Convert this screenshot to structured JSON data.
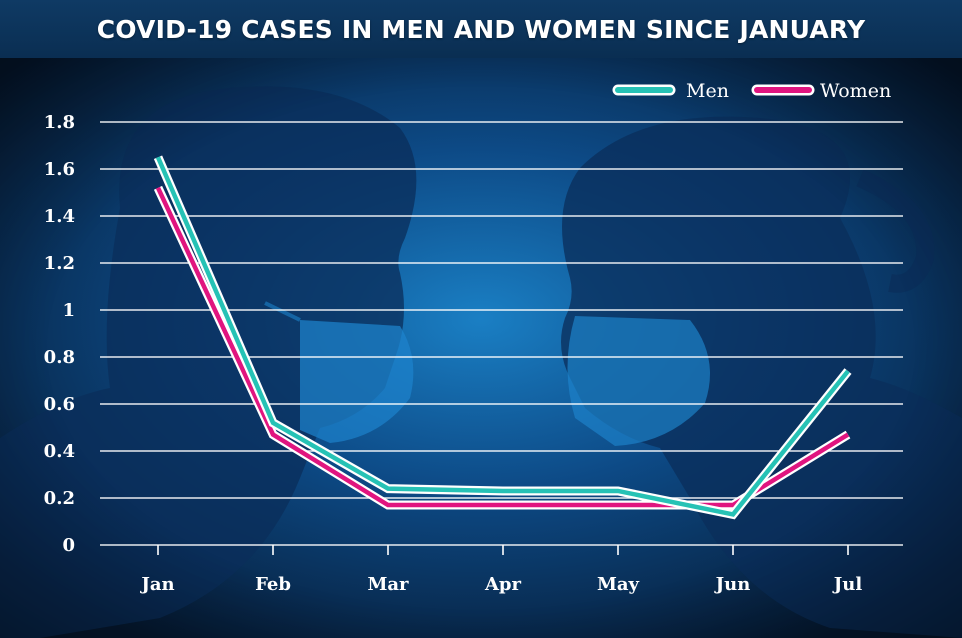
{
  "title": "COVID-19 CASES IN MEN AND WOMEN SINCE JANUARY",
  "chart_data": {
    "type": "line",
    "title": "COVID-19 CASES IN MEN AND WOMEN SINCE JANUARY",
    "xlabel": "",
    "ylabel": "",
    "categories": [
      "Jan",
      "Feb",
      "Mar",
      "Apr",
      "May",
      "Jun",
      "Jul"
    ],
    "ylim": [
      0,
      1.8
    ],
    "yticks": [
      "0",
      "0.2",
      "0.4",
      "0.6",
      "0.8",
      "1",
      "1.2",
      "1.4",
      "1.6",
      "1.8"
    ],
    "grid": true,
    "legend_position": "top-right",
    "series": [
      {
        "name": "Men",
        "color": "#26c2b5",
        "values": [
          1.65,
          0.52,
          0.24,
          0.23,
          0.23,
          0.13,
          0.74
        ]
      },
      {
        "name": "Women",
        "color": "#e0157f",
        "values": [
          1.52,
          0.47,
          0.17,
          0.17,
          0.17,
          0.17,
          0.47
        ]
      }
    ],
    "background_color": "#0a2a4e",
    "grid_color": "#ffffff"
  }
}
